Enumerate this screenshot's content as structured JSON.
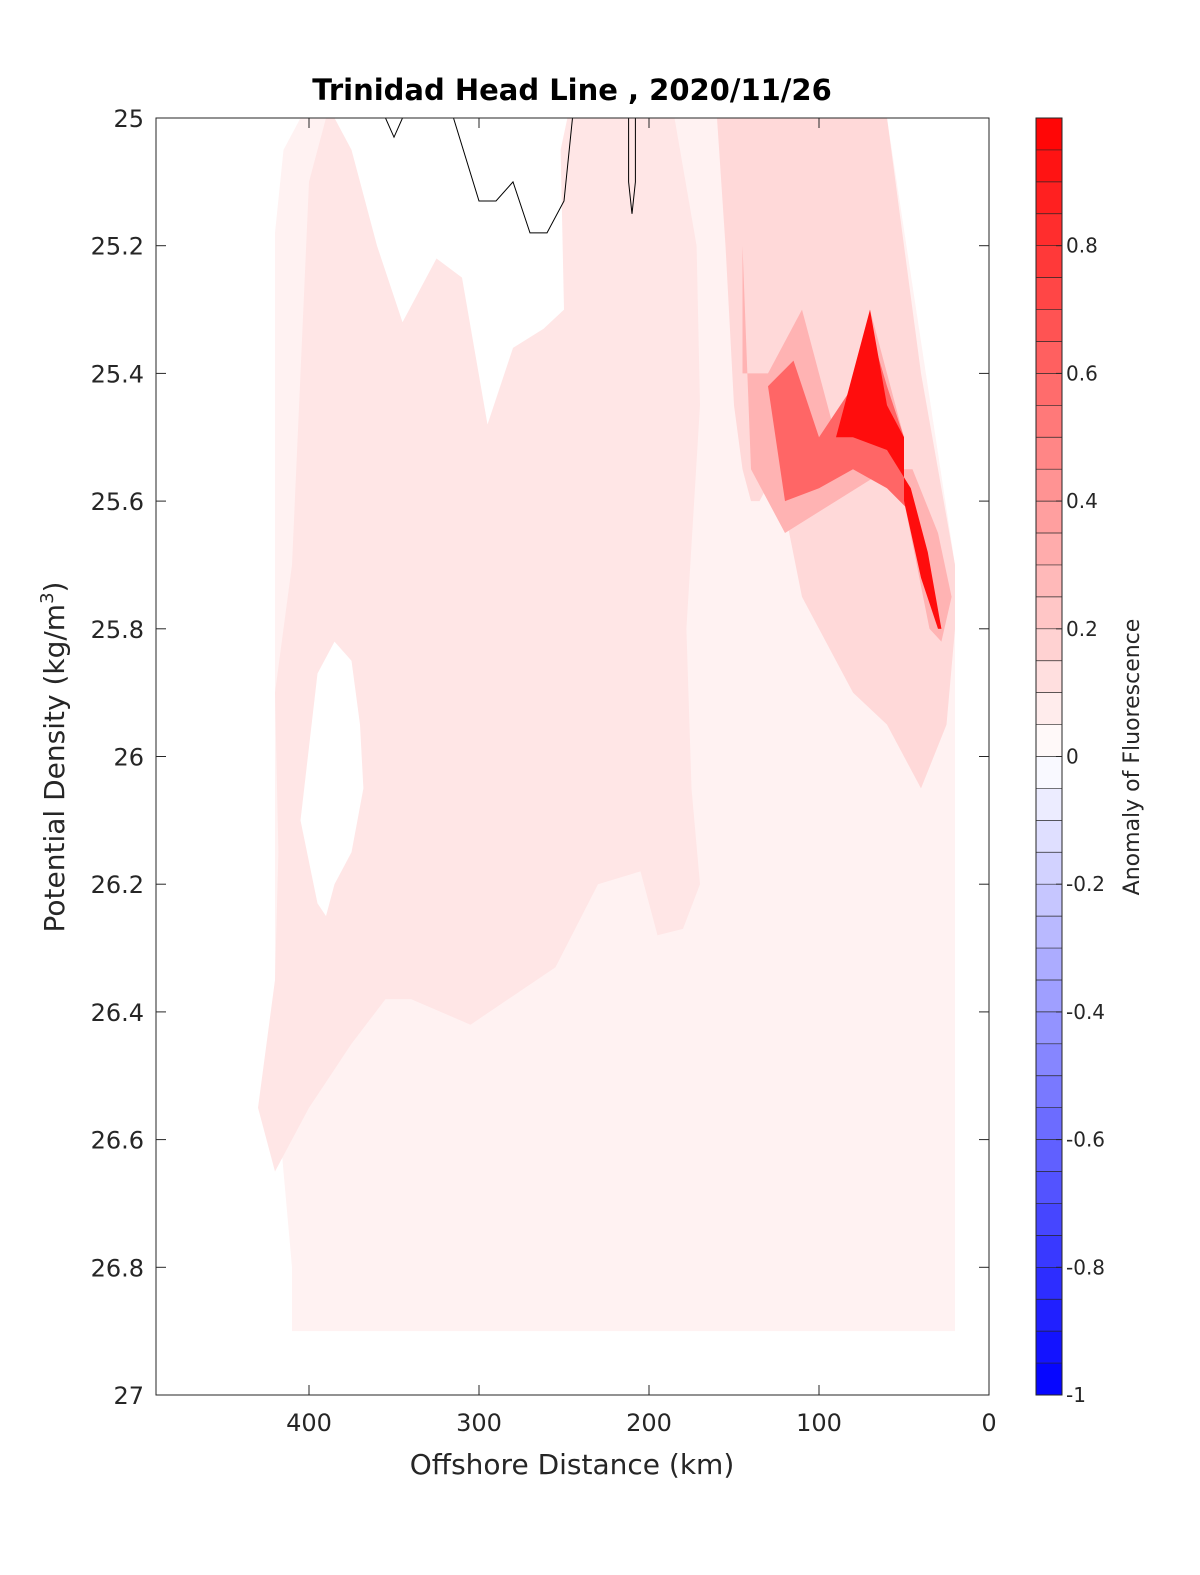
{
  "chart_data": {
    "type": "contour",
    "title": "Trinidad Head Line , 2020/11/26",
    "xlabel": "Offshore Distance (km)",
    "ylabel": "Potential Density (kg/m",
    "ylabel_superscript": "3",
    "ylabel_suffix": ")",
    "xlim": [
      490,
      0
    ],
    "ylim": [
      27,
      25
    ],
    "x_reversed": true,
    "y_reversed": true,
    "xticks": [
      400,
      300,
      200,
      100,
      0
    ],
    "yticks": [
      25,
      25.2,
      25.4,
      25.6,
      25.8,
      26,
      26.2,
      26.4,
      26.6,
      26.8,
      27
    ],
    "colorbar": {
      "label": "Anomaly of Fluorescence",
      "range": [
        -1,
        1
      ],
      "levels": 40,
      "ticks": [
        0.8,
        0.6,
        0.4,
        0.2,
        0,
        -0.2,
        -0.4,
        -0.6,
        -0.8,
        -1
      ],
      "colors": {
        "max": "#ff0000",
        "zero": "#ffffff",
        "min": "#0000ff"
      }
    },
    "grid": false,
    "regions": [
      {
        "name": "anomaly-0.05",
        "value": 0.05,
        "polygon": [
          [
            420,
            25.18
          ],
          [
            415,
            25.05
          ],
          [
            405,
            25
          ],
          [
            215,
            25
          ],
          [
            215,
            25.3
          ],
          [
            212,
            25.5
          ],
          [
            200,
            25.65
          ],
          [
            195,
            25.45
          ],
          [
            200,
            25.25
          ],
          [
            190,
            25
          ],
          [
            150,
            25
          ],
          [
            60,
            25
          ],
          [
            20,
            25.7
          ],
          [
            20,
            26.9
          ],
          [
            410,
            26.9
          ],
          [
            410,
            26.8
          ],
          [
            420,
            26.5
          ]
        ]
      },
      {
        "name": "anomaly-0.1",
        "value": 0.1,
        "polygon": [
          [
            185,
            25
          ],
          [
            172,
            25.2
          ],
          [
            170,
            25.45
          ],
          [
            178,
            25.8
          ],
          [
            175,
            26.05
          ],
          [
            170,
            26.2
          ],
          [
            180,
            26.27
          ],
          [
            195,
            26.28
          ],
          [
            205,
            26.18
          ],
          [
            230,
            26.2
          ],
          [
            255,
            26.33
          ],
          [
            305,
            26.42
          ],
          [
            340,
            26.38
          ],
          [
            355,
            26.38
          ],
          [
            375,
            26.45
          ],
          [
            400,
            26.55
          ],
          [
            420,
            26.65
          ],
          [
            430,
            26.55
          ],
          [
            420,
            26.35
          ],
          [
            418,
            26.15
          ],
          [
            420,
            25.9
          ],
          [
            410,
            25.7
          ],
          [
            405,
            25.4
          ],
          [
            400,
            25.1
          ],
          [
            390,
            25
          ]
        ]
      },
      {
        "name": "anomaly-0.15",
        "value": 0.15,
        "polygon": [
          [
            160,
            25
          ],
          [
            155,
            25.2
          ],
          [
            150,
            25.45
          ],
          [
            145,
            25.55
          ],
          [
            140,
            25.6
          ],
          [
            135,
            25.6
          ],
          [
            125,
            25.55
          ],
          [
            110,
            25.75
          ],
          [
            80,
            25.9
          ],
          [
            60,
            25.95
          ],
          [
            40,
            26.05
          ],
          [
            25,
            25.95
          ],
          [
            20,
            25.8
          ],
          [
            20,
            25.7
          ],
          [
            40,
            25.4
          ],
          [
            60,
            25
          ],
          [
            100,
            25
          ]
        ]
      },
      {
        "name": "anomaly-0.3",
        "value": 0.3,
        "polygon": [
          [
            145,
            25.2
          ],
          [
            145,
            25.4
          ],
          [
            130,
            25.4
          ],
          [
            110,
            25.3
          ],
          [
            90,
            25.5
          ],
          [
            70,
            25.3
          ],
          [
            50,
            25.5
          ],
          [
            50,
            25.6
          ],
          [
            35,
            25.8
          ],
          [
            28,
            25.82
          ],
          [
            22,
            25.75
          ],
          [
            30,
            25.65
          ],
          [
            45,
            25.55
          ],
          [
            60,
            25.55
          ],
          [
            90,
            25.6
          ],
          [
            120,
            25.65
          ],
          [
            140,
            25.55
          ]
        ]
      },
      {
        "name": "anomaly-0.6",
        "value": 0.6,
        "polygon": [
          [
            130,
            25.42
          ],
          [
            115,
            25.38
          ],
          [
            100,
            25.5
          ],
          [
            80,
            25.42
          ],
          [
            70,
            25.33
          ],
          [
            60,
            25.42
          ],
          [
            50,
            25.5
          ],
          [
            50,
            25.6
          ],
          [
            40,
            25.7
          ],
          [
            30,
            25.8
          ],
          [
            28,
            25.8
          ],
          [
            35,
            25.72
          ],
          [
            45,
            25.62
          ],
          [
            60,
            25.58
          ],
          [
            80,
            25.55
          ],
          [
            100,
            25.58
          ],
          [
            120,
            25.6
          ]
        ]
      },
      {
        "name": "anomaly-0.95",
        "value": 0.95,
        "polygon": [
          [
            90,
            25.5
          ],
          [
            80,
            25.4
          ],
          [
            70,
            25.3
          ],
          [
            60,
            25.45
          ],
          [
            50,
            25.5
          ],
          [
            50,
            25.6
          ],
          [
            40,
            25.72
          ],
          [
            30,
            25.8
          ],
          [
            28,
            25.8
          ],
          [
            36,
            25.68
          ],
          [
            46,
            25.58
          ],
          [
            60,
            25.52
          ],
          [
            80,
            25.5
          ]
        ]
      },
      {
        "name": "anomaly-neg-0.05",
        "value": -0.05,
        "polygon": [
          [
            265,
            25
          ],
          [
            262,
            25.05
          ],
          [
            258,
            25
          ],
          [
            255,
            25
          ]
        ]
      },
      {
        "name": "zero-patch-offshore",
        "value": 0,
        "polygon": [
          [
            375,
            25.85
          ],
          [
            385,
            25.82
          ],
          [
            395,
            25.87
          ],
          [
            405,
            26.1
          ],
          [
            395,
            26.23
          ],
          [
            390,
            26.25
          ],
          [
            385,
            26.2
          ],
          [
            375,
            26.15
          ],
          [
            368,
            26.05
          ],
          [
            370,
            25.95
          ]
        ]
      },
      {
        "name": "zero-patch-mid",
        "value": 0,
        "polygon": [
          [
            385,
            25
          ],
          [
            375,
            25.05
          ],
          [
            360,
            25.2
          ],
          [
            345,
            25.32
          ],
          [
            325,
            25.22
          ],
          [
            310,
            25.25
          ],
          [
            295,
            25.48
          ],
          [
            280,
            25.36
          ],
          [
            262,
            25.33
          ],
          [
            250,
            25.3
          ],
          [
            252,
            25.05
          ],
          [
            248,
            25
          ]
        ]
      }
    ],
    "contour_lines": [
      {
        "value": 0,
        "points": [
          [
            355,
            25
          ],
          [
            350,
            25.03
          ],
          [
            345,
            25
          ]
        ]
      },
      {
        "value": 0,
        "points": [
          [
            315,
            25
          ],
          [
            300,
            25.13
          ],
          [
            290,
            25.13
          ],
          [
            280,
            25.1
          ],
          [
            270,
            25.18
          ],
          [
            260,
            25.18
          ],
          [
            250,
            25.13
          ],
          [
            245,
            25
          ]
        ]
      },
      {
        "value": 0,
        "points": [
          [
            212,
            25
          ],
          [
            212,
            25.1
          ],
          [
            210,
            25.15
          ],
          [
            208,
            25.1
          ],
          [
            208,
            25
          ]
        ]
      }
    ]
  }
}
